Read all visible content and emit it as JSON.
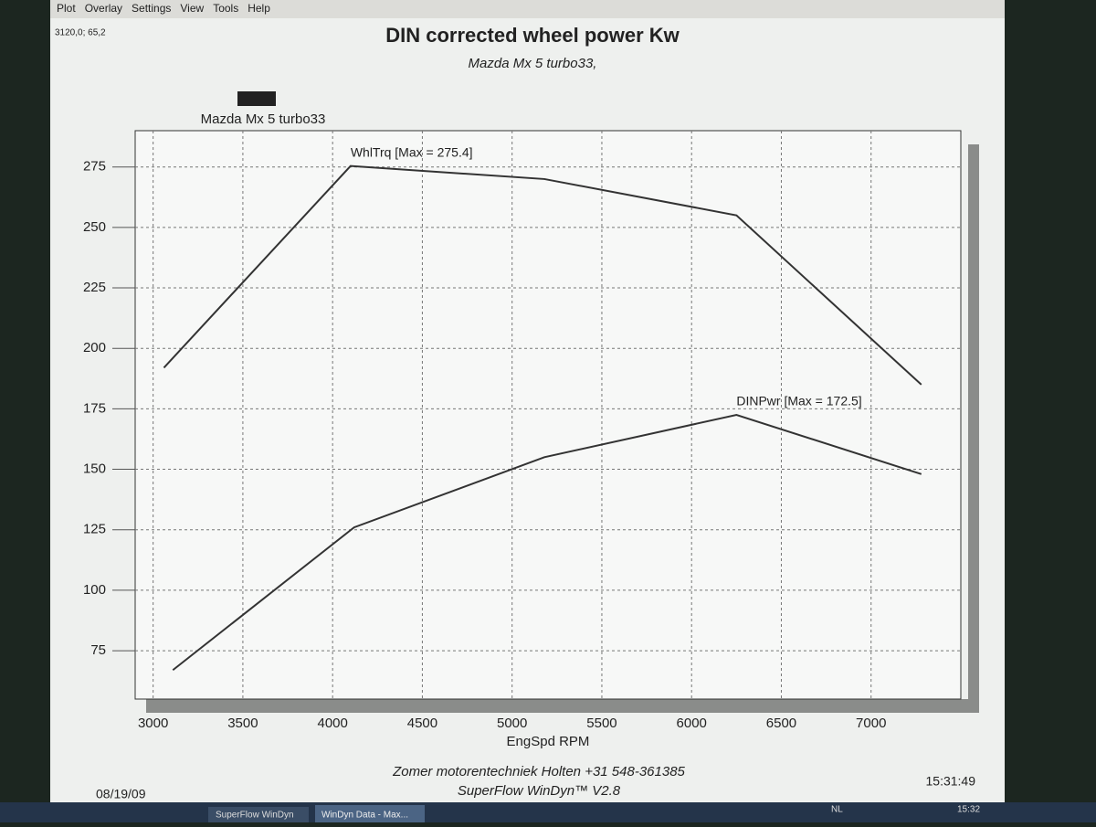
{
  "menu": [
    "Plot",
    "Overlay",
    "Settings",
    "View",
    "Tools",
    "Help"
  ],
  "cursor_readout": "3120,0; 65,2",
  "chart_data": {
    "type": "line",
    "title": "DIN corrected wheel power Kw",
    "subtitle": "Mazda Mx 5 turbo33,",
    "legend": {
      "label": "Mazda Mx 5 turbo33",
      "color": "#222222"
    },
    "xlabel": "EngSpd  RPM",
    "xlim": [
      2900,
      7500
    ],
    "xticks": [
      3000,
      3500,
      4000,
      4500,
      5000,
      5500,
      6000,
      6500,
      7000
    ],
    "ylim": [
      55,
      290
    ],
    "yticks": [
      75,
      100,
      125,
      150,
      175,
      200,
      225,
      250,
      275
    ],
    "grid": true,
    "series": [
      {
        "name": "WhlTrq [Max = 275.4]",
        "color": "#333333",
        "x": [
          3060,
          4100,
          5180,
          6250,
          7280
        ],
        "values": [
          192,
          275.4,
          270,
          255,
          185
        ]
      },
      {
        "name": "DINPwr [Max = 172.5]",
        "color": "#333333",
        "x": [
          3110,
          4120,
          5180,
          6250,
          7280
        ],
        "values": [
          67,
          126,
          155,
          172.5,
          148
        ]
      }
    ]
  },
  "footer": {
    "company": "Zomer motorentechniek Holten +31 548-361385",
    "software": "SuperFlow WinDyn™ V2.8",
    "date": "08/19/09",
    "time": "15:31:49"
  },
  "taskbar": {
    "items": [
      "SuperFlow WinDyn",
      "WinDyn Data - Max..."
    ],
    "language": "NL",
    "clock": "15:32"
  }
}
